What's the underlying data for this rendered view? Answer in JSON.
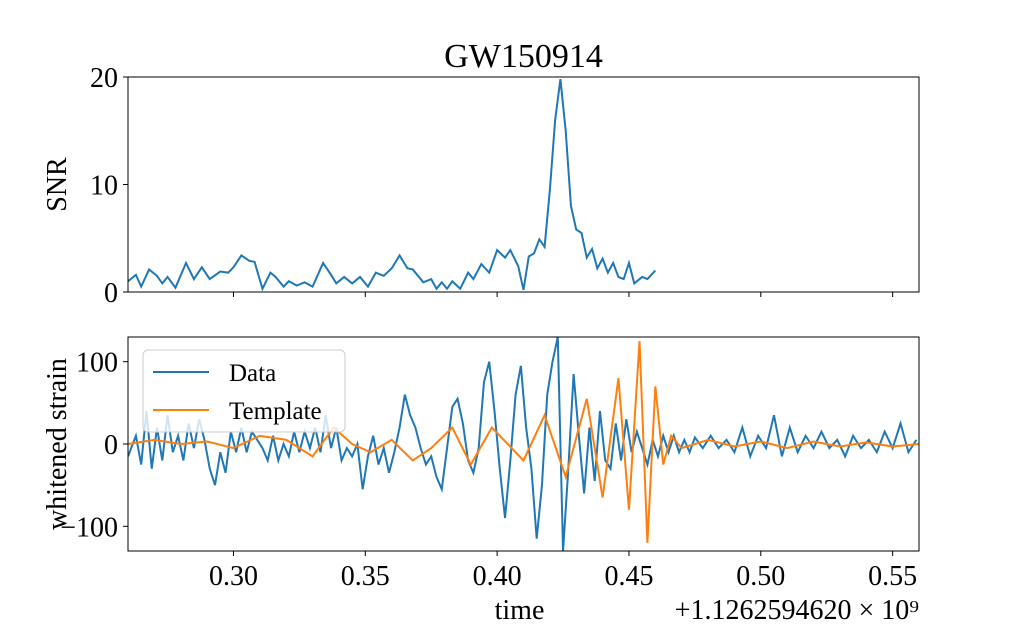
{
  "chart_data": [
    {
      "type": "line",
      "title": "GW150914",
      "ylabel": "SNR",
      "xlim": [
        0.26,
        0.56
      ],
      "xticks": [
        0.3,
        0.35,
        0.4,
        0.45,
        0.5,
        0.55
      ],
      "ylim": [
        0,
        20
      ],
      "yticks": [
        0,
        10,
        20
      ],
      "series": [
        {
          "color": "#1f77b4",
          "x": [
            0.26,
            0.263,
            0.265,
            0.268,
            0.271,
            0.273,
            0.275,
            0.278,
            0.282,
            0.285,
            0.288,
            0.291,
            0.295,
            0.298,
            0.3,
            0.303,
            0.306,
            0.308,
            0.311,
            0.314,
            0.316,
            0.319,
            0.321,
            0.324,
            0.327,
            0.33,
            0.334,
            0.337,
            0.339,
            0.342,
            0.345,
            0.348,
            0.351,
            0.354,
            0.357,
            0.36,
            0.363,
            0.366,
            0.368,
            0.372,
            0.375,
            0.377,
            0.379,
            0.381,
            0.383,
            0.386,
            0.389,
            0.391,
            0.394,
            0.397,
            0.4,
            0.403,
            0.405,
            0.408,
            0.41,
            0.412,
            0.414,
            0.416,
            0.418,
            0.42,
            0.422,
            0.424,
            0.426,
            0.428,
            0.43,
            0.432,
            0.434,
            0.436,
            0.438,
            0.44,
            0.442,
            0.444,
            0.446,
            0.448,
            0.45,
            0.452,
            0.455,
            0.457,
            0.46
          ],
          "values": [
            1.0,
            1.6,
            0.5,
            2.1,
            1.5,
            0.8,
            1.4,
            0.4,
            2.7,
            1.2,
            2.3,
            1.2,
            1.9,
            1.8,
            2.3,
            3.4,
            2.9,
            2.8,
            0.3,
            1.8,
            1.4,
            0.5,
            1.0,
            0.6,
            0.9,
            0.5,
            2.7,
            1.6,
            0.8,
            1.4,
            0.8,
            1.4,
            0.5,
            1.8,
            1.5,
            2.2,
            3.4,
            2.2,
            2.1,
            0.9,
            1.2,
            0.3,
            0.9,
            0.3,
            1.0,
            0.3,
            1.8,
            1.2,
            2.6,
            1.8,
            3.9,
            3.2,
            3.9,
            2.4,
            0.2,
            3.3,
            3.6,
            4.9,
            4.2,
            9.5,
            16.0,
            19.8,
            15.0,
            8.0,
            5.8,
            5.5,
            3.2,
            4.0,
            2.2,
            3.1,
            1.8,
            2.7,
            1.4,
            1.2,
            2.7,
            0.8,
            1.4,
            1.2,
            2.0
          ]
        }
      ]
    },
    {
      "type": "line",
      "ylabel": "whitened strain",
      "xlabel": "time",
      "offset_text": "+1.1262594620 × 10⁹",
      "xlim": [
        0.26,
        0.56
      ],
      "xticks": [
        {
          "value": 0.3,
          "label": "0.30"
        },
        {
          "value": 0.35,
          "label": "0.35"
        },
        {
          "value": 0.4,
          "label": "0.40"
        },
        {
          "value": 0.45,
          "label": "0.45"
        },
        {
          "value": 0.5,
          "label": "0.50"
        },
        {
          "value": 0.55,
          "label": "0.55"
        }
      ],
      "ylim": [
        -130,
        130
      ],
      "yticks": [
        {
          "value": -100,
          "label": "−100"
        },
        0,
        100
      ],
      "legend": "upper left",
      "series": [
        {
          "name": "Data",
          "color": "#1f77b4",
          "x": [
            0.26,
            0.263,
            0.265,
            0.267,
            0.269,
            0.271,
            0.273,
            0.275,
            0.277,
            0.279,
            0.281,
            0.283,
            0.285,
            0.287,
            0.289,
            0.291,
            0.293,
            0.295,
            0.297,
            0.299,
            0.301,
            0.303,
            0.305,
            0.307,
            0.309,
            0.311,
            0.313,
            0.315,
            0.317,
            0.319,
            0.321,
            0.323,
            0.325,
            0.327,
            0.329,
            0.331,
            0.333,
            0.335,
            0.337,
            0.339,
            0.341,
            0.343,
            0.345,
            0.347,
            0.349,
            0.351,
            0.353,
            0.355,
            0.357,
            0.359,
            0.361,
            0.363,
            0.365,
            0.367,
            0.369,
            0.371,
            0.373,
            0.375,
            0.377,
            0.379,
            0.381,
            0.383,
            0.385,
            0.387,
            0.389,
            0.391,
            0.393,
            0.395,
            0.397,
            0.399,
            0.401,
            0.403,
            0.405,
            0.407,
            0.409,
            0.411,
            0.413,
            0.415,
            0.417,
            0.419,
            0.421,
            0.423,
            0.425,
            0.427,
            0.429,
            0.431,
            0.433,
            0.435,
            0.437,
            0.439,
            0.441,
            0.443,
            0.445,
            0.447,
            0.449,
            0.451,
            0.453,
            0.455,
            0.457,
            0.459,
            0.461,
            0.463,
            0.465,
            0.467,
            0.469,
            0.471,
            0.473,
            0.475,
            0.478,
            0.481,
            0.484,
            0.487,
            0.49,
            0.493,
            0.496,
            0.499,
            0.502,
            0.505,
            0.508,
            0.511,
            0.514,
            0.517,
            0.52,
            0.523,
            0.526,
            0.529,
            0.532,
            0.535,
            0.538,
            0.541,
            0.544,
            0.547,
            0.55,
            0.553,
            0.556,
            0.559
          ],
          "values": [
            -15,
            10,
            -25,
            40,
            -30,
            20,
            -20,
            35,
            -10,
            10,
            -20,
            25,
            -5,
            30,
            5,
            -30,
            -50,
            -10,
            -35,
            15,
            -10,
            20,
            -10,
            15,
            5,
            -5,
            -20,
            10,
            -20,
            0,
            -15,
            15,
            -10,
            15,
            -5,
            20,
            -10,
            35,
            -5,
            20,
            -20,
            -5,
            -15,
            0,
            -55,
            -15,
            10,
            -25,
            -5,
            -35,
            -10,
            20,
            60,
            35,
            20,
            -5,
            -25,
            -15,
            -40,
            -55,
            -5,
            45,
            55,
            25,
            -20,
            -35,
            -5,
            75,
            100,
            40,
            -30,
            -90,
            -20,
            60,
            95,
            20,
            -30,
            -115,
            -50,
            60,
            100,
            130,
            -130,
            -30,
            85,
            10,
            -60,
            20,
            -45,
            40,
            -20,
            -30,
            25,
            -20,
            30,
            -10,
            15,
            -5,
            -25,
            5,
            -15,
            10,
            -10,
            10,
            -10,
            5,
            -10,
            8,
            -5,
            10,
            -5,
            5,
            -10,
            20,
            -15,
            10,
            -5,
            35,
            -15,
            20,
            -10,
            10,
            -5,
            15,
            -5,
            5,
            -15,
            10,
            -5,
            5,
            -10,
            15,
            -5,
            25,
            -10,
            5
          ]
        },
        {
          "name": "Template",
          "color": "#ff7f0e",
          "x": [
            0.26,
            0.27,
            0.28,
            0.29,
            0.3,
            0.31,
            0.32,
            0.33,
            0.338,
            0.345,
            0.352,
            0.36,
            0.368,
            0.375,
            0.383,
            0.39,
            0.398,
            0.404,
            0.41,
            0.418,
            0.426,
            0.434,
            0.44,
            0.446,
            0.45,
            0.454,
            0.457,
            0.46,
            0.463,
            0.466,
            0.47,
            0.48,
            0.49,
            0.5,
            0.51,
            0.52,
            0.53,
            0.54,
            0.55,
            0.56
          ],
          "values": [
            0,
            5,
            0,
            3,
            -5,
            10,
            5,
            -15,
            20,
            0,
            -10,
            5,
            -20,
            -5,
            20,
            -25,
            20,
            0,
            -20,
            35,
            -40,
            55,
            -65,
            80,
            -80,
            125,
            -120,
            70,
            -25,
            10,
            -5,
            5,
            -3,
            3,
            -5,
            3,
            -3,
            2,
            -3,
            0
          ]
        }
      ]
    }
  ]
}
